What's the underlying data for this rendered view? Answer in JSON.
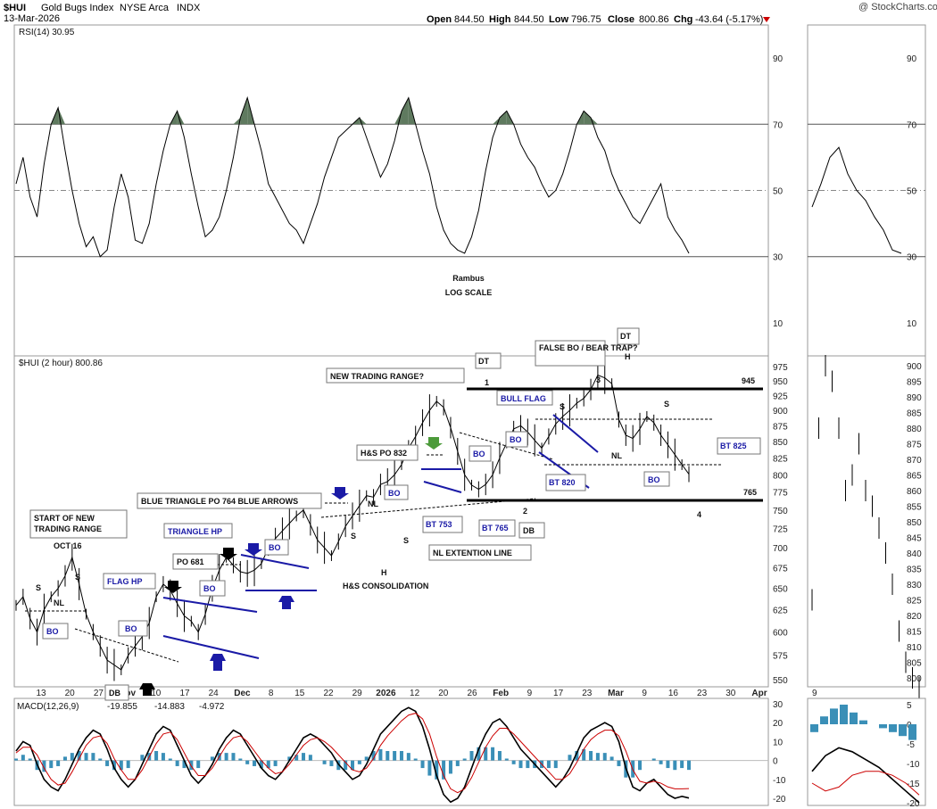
{
  "header": {
    "symbol": "$HUI",
    "name": "Gold Bugs Index",
    "exchange": "NYSE Arca",
    "type": "INDX",
    "date": "13-Mar-2026",
    "open_label": "Open",
    "open": "844.50",
    "high_label": "High",
    "high": "844.50",
    "low_label": "Low",
    "low": "796.75",
    "close_label": "Close",
    "close": "800.86",
    "chg_label": "Chg",
    "chg": "-43.64 (-5.17%)",
    "watermark": "@ StockCharts.com",
    "down_color": "#cc0000"
  },
  "chart_data": [
    {
      "type": "line",
      "title": "RSI(14) 30.95",
      "ylim": [
        0,
        100
      ],
      "yticks": [
        10,
        30,
        50,
        70,
        90
      ],
      "reference_lines": [
        30,
        50,
        70
      ],
      "x": [
        0,
        1,
        2,
        3,
        4,
        5,
        6,
        7,
        8,
        9,
        10,
        11,
        12,
        13,
        14,
        15,
        16,
        17,
        18,
        19,
        20,
        21,
        22,
        23,
        24,
        25,
        26,
        27,
        28,
        29,
        30,
        31,
        32,
        33,
        34,
        35,
        36,
        37,
        38,
        39,
        40,
        41,
        42,
        43,
        44,
        45,
        46,
        47,
        48,
        49,
        50,
        51,
        52,
        53,
        54,
        55,
        56,
        57,
        58,
        59,
        60,
        61,
        62,
        63,
        64,
        65,
        66,
        67,
        68,
        69,
        70,
        71,
        72,
        73,
        74,
        75,
        76,
        77,
        78,
        79,
        80,
        81,
        82,
        83,
        84,
        85,
        86,
        87,
        88,
        89,
        90,
        91,
        92,
        93,
        94,
        95,
        96
      ],
      "values": [
        52,
        60,
        48,
        42,
        58,
        70,
        75,
        62,
        50,
        40,
        33,
        36,
        30,
        32,
        45,
        55,
        48,
        35,
        34,
        40,
        52,
        62,
        70,
        74,
        66,
        55,
        45,
        36,
        38,
        42,
        50,
        60,
        72,
        78,
        70,
        62,
        52,
        48,
        44,
        40,
        38,
        34,
        40,
        46,
        54,
        60,
        66,
        68,
        70,
        72,
        66,
        60,
        54,
        58,
        65,
        74,
        78,
        70,
        62,
        55,
        45,
        38,
        34,
        32,
        31,
        36,
        44,
        56,
        66,
        72,
        74,
        70,
        64,
        60,
        57,
        52,
        48,
        50,
        55,
        62,
        70,
        74,
        72,
        66,
        62,
        55,
        50,
        46,
        42,
        40,
        44,
        48,
        52,
        42,
        38,
        35,
        31
      ],
      "x_labels": [
        "13",
        "20",
        "27",
        "Nov",
        "10",
        "17",
        "24",
        "Dec",
        "8",
        "15",
        "22",
        "29",
        "2026",
        "12",
        "20",
        "26",
        "Feb",
        "9",
        "17",
        "23",
        "Mar",
        "9",
        "16",
        "23",
        "30",
        "Apr"
      ],
      "annotations": [
        "Rambus",
        "LOG SCALE"
      ],
      "color": "#000000",
      "overbought_fill": "#5f7a5f"
    },
    {
      "type": "line",
      "title": "$HUI (2 hour) 800.86",
      "ylim": [
        550,
        975
      ],
      "yticks": [
        550,
        575,
        600,
        625,
        650,
        675,
        700,
        725,
        750,
        775,
        800,
        825,
        850,
        875,
        900,
        925,
        950,
        975
      ],
      "x": [
        0,
        1,
        2,
        3,
        4,
        5,
        6,
        7,
        8,
        9,
        10,
        11,
        12,
        13,
        14,
        15,
        16,
        17,
        18,
        19,
        20,
        21,
        22,
        23,
        24,
        25,
        26,
        27,
        28,
        29,
        30,
        31,
        32,
        33,
        34,
        35,
        36,
        37,
        38,
        39,
        40,
        41,
        42,
        43,
        44,
        45,
        46,
        47,
        48,
        49,
        50,
        51,
        52,
        53,
        54,
        55,
        56,
        57,
        58,
        59,
        60,
        61,
        62,
        63,
        64,
        65,
        66,
        67,
        68,
        69,
        70,
        71,
        72,
        73,
        74,
        75,
        76,
        77,
        78,
        79,
        80,
        81,
        82,
        83,
        84,
        85,
        86,
        87,
        88,
        89,
        90,
        91,
        92,
        93,
        94,
        95,
        96
      ],
      "values": [
        630,
        640,
        615,
        600,
        625,
        640,
        650,
        665,
        688,
        655,
        620,
        600,
        585,
        570,
        565,
        560,
        575,
        585,
        595,
        610,
        640,
        655,
        648,
        632,
        618,
        612,
        600,
        620,
        650,
        672,
        688,
        678,
        670,
        668,
        672,
        680,
        700,
        712,
        722,
        732,
        742,
        750,
        730,
        710,
        700,
        690,
        708,
        728,
        742,
        756,
        770,
        768,
        786,
        790,
        800,
        815,
        840,
        858,
        880,
        900,
        915,
        905,
        872,
        835,
        800,
        785,
        779,
        786,
        800,
        825,
        848,
        870,
        875,
        865,
        852,
        840,
        858,
        878,
        890,
        900,
        912,
        920,
        935,
        960,
        955,
        945,
        885,
        860,
        855,
        870,
        890,
        880,
        860,
        845,
        830,
        815,
        801
      ],
      "x_labels": [
        "13",
        "20",
        "27",
        "Nov",
        "10",
        "17",
        "24",
        "Dec",
        "8",
        "15",
        "22",
        "29",
        "2026",
        "12",
        "20",
        "26",
        "Feb",
        "9",
        "17",
        "23",
        "Mar",
        "9",
        "16",
        "23",
        "30",
        "Apr"
      ],
      "levels": [
        {
          "value": 945,
          "label": "945"
        },
        {
          "value": 765,
          "label": "765"
        }
      ],
      "annotations": [
        "NEW TRADING RANGE?",
        "DT",
        "1",
        "FALSE BO / BEAR TRAP?",
        "3",
        "DT",
        "H",
        "BULL FLAG",
        "S",
        "S",
        "NL",
        "BT 825",
        "BO",
        "BT 820",
        "BO",
        "2",
        "DB",
        "4",
        "BT 765",
        "NL EXTENTION LINE",
        "BT 753",
        "H&S PO 832",
        "BO",
        "BO",
        "BLUE TRIANGLE PO 764 BLUE ARROWS",
        "NL",
        "S",
        "S",
        "H",
        "H&S CONSOLIDATION",
        "TRIANGLE HP",
        "BO",
        "PO 681",
        "FLAG HP",
        "BO",
        "BO",
        "START OF NEW TRADING RANGE",
        "OCT 16",
        "S",
        "NL",
        "S",
        "DB"
      ],
      "right_panel": {
        "yticks": [
          800,
          805,
          810,
          815,
          820,
          825,
          830,
          835,
          840,
          845,
          850,
          855,
          860,
          865,
          870,
          875,
          880,
          885,
          890,
          895,
          900
        ],
        "values": [
          825,
          880,
          900,
          895,
          880,
          860,
          865,
          875,
          860,
          855,
          848,
          840,
          830,
          815,
          805,
          800,
          797
        ],
        "x_label": "9"
      }
    },
    {
      "type": "line",
      "title": "MACD(12,26,9)",
      "macd_value": "-19.855",
      "signal_value": "-14.883",
      "hist_value": "-4.972",
      "ylim": [
        -20,
        30
      ],
      "yticks": [
        -20,
        -10,
        0,
        10,
        20,
        30
      ],
      "series": [
        {
          "name": "MACD(12,26,9)",
          "color": "#000000",
          "values": [
            5,
            10,
            8,
            -2,
            -10,
            -14,
            -16,
            -10,
            -2,
            6,
            12,
            16,
            14,
            6,
            -4,
            -10,
            -14,
            -10,
            -2,
            6,
            14,
            18,
            16,
            8,
            0,
            -8,
            -12,
            -8,
            -2,
            6,
            12,
            16,
            14,
            8,
            2,
            -4,
            -8,
            -10,
            -6,
            0,
            6,
            12,
            14,
            12,
            8,
            4,
            -2,
            -6,
            -10,
            -8,
            -2,
            6,
            14,
            18,
            22,
            26,
            28,
            26,
            18,
            6,
            -8,
            -18,
            -22,
            -20,
            -14,
            -4,
            6,
            14,
            20,
            22,
            18,
            12,
            6,
            2,
            -2,
            -6,
            -10,
            -14,
            -10,
            -4,
            4,
            12,
            16,
            18,
            20,
            18,
            10,
            -4,
            -14,
            -16,
            -12,
            -10,
            -14,
            -18,
            -20,
            -19,
            -19.855
          ]
        },
        {
          "name": "Signal",
          "color": "#cc0000",
          "values": [
            4,
            7,
            7,
            3,
            -4,
            -10,
            -13,
            -12,
            -6,
            1,
            8,
            12,
            13,
            9,
            1,
            -5,
            -10,
            -10,
            -5,
            2,
            9,
            14,
            15,
            11,
            4,
            -3,
            -8,
            -8,
            -4,
            2,
            8,
            12,
            13,
            10,
            5,
            0,
            -4,
            -7,
            -6,
            -2,
            3,
            8,
            11,
            12,
            10,
            7,
            3,
            -1,
            -5,
            -6,
            -4,
            1,
            8,
            13,
            17,
            21,
            24,
            25,
            22,
            14,
            2,
            -8,
            -15,
            -17,
            -15,
            -9,
            -1,
            7,
            13,
            17,
            17,
            14,
            10,
            6,
            2,
            -2,
            -6,
            -10,
            -10,
            -7,
            -1,
            6,
            11,
            14,
            16,
            16,
            13,
            5,
            -5,
            -11,
            -12,
            -11,
            -12,
            -14,
            -15,
            -15,
            -14.883
          ]
        }
      ],
      "hist_color": "#3a8fb7"
    }
  ]
}
